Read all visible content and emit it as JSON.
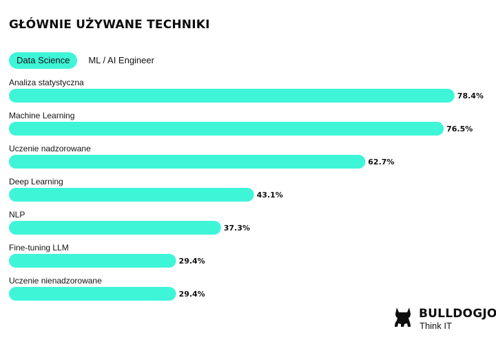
{
  "title": "GŁÓWNIE UŻYWANE TECHNIKI",
  "tabs": [
    {
      "label": "Data Science",
      "active": true
    },
    {
      "label": "ML / AI Engineer",
      "active": false
    }
  ],
  "colors": {
    "bar": "#3ef5d8",
    "text": "#111111"
  },
  "chart_data": {
    "type": "bar",
    "orientation": "horizontal",
    "categories": [
      "Analiza statystyczna",
      "Machine Learning",
      "Uczenie nadzorowane",
      "Deep Learning",
      "NLP",
      "Fine-tuning LLM",
      "Uczenie nienadzorowane"
    ],
    "values": [
      78.4,
      76.5,
      62.7,
      43.1,
      37.3,
      29.4,
      29.4
    ],
    "value_labels": [
      "78.4%",
      "76.5%",
      "62.7%",
      "43.1%",
      "37.3%",
      "29.4%",
      "29.4%"
    ],
    "unit": "%",
    "xlim": [
      0,
      100
    ],
    "grid": false,
    "legend": "none"
  },
  "logo": {
    "icon": "bulldog-icon",
    "name": "BULLDOGJOB",
    "tagline": "Think IT"
  }
}
